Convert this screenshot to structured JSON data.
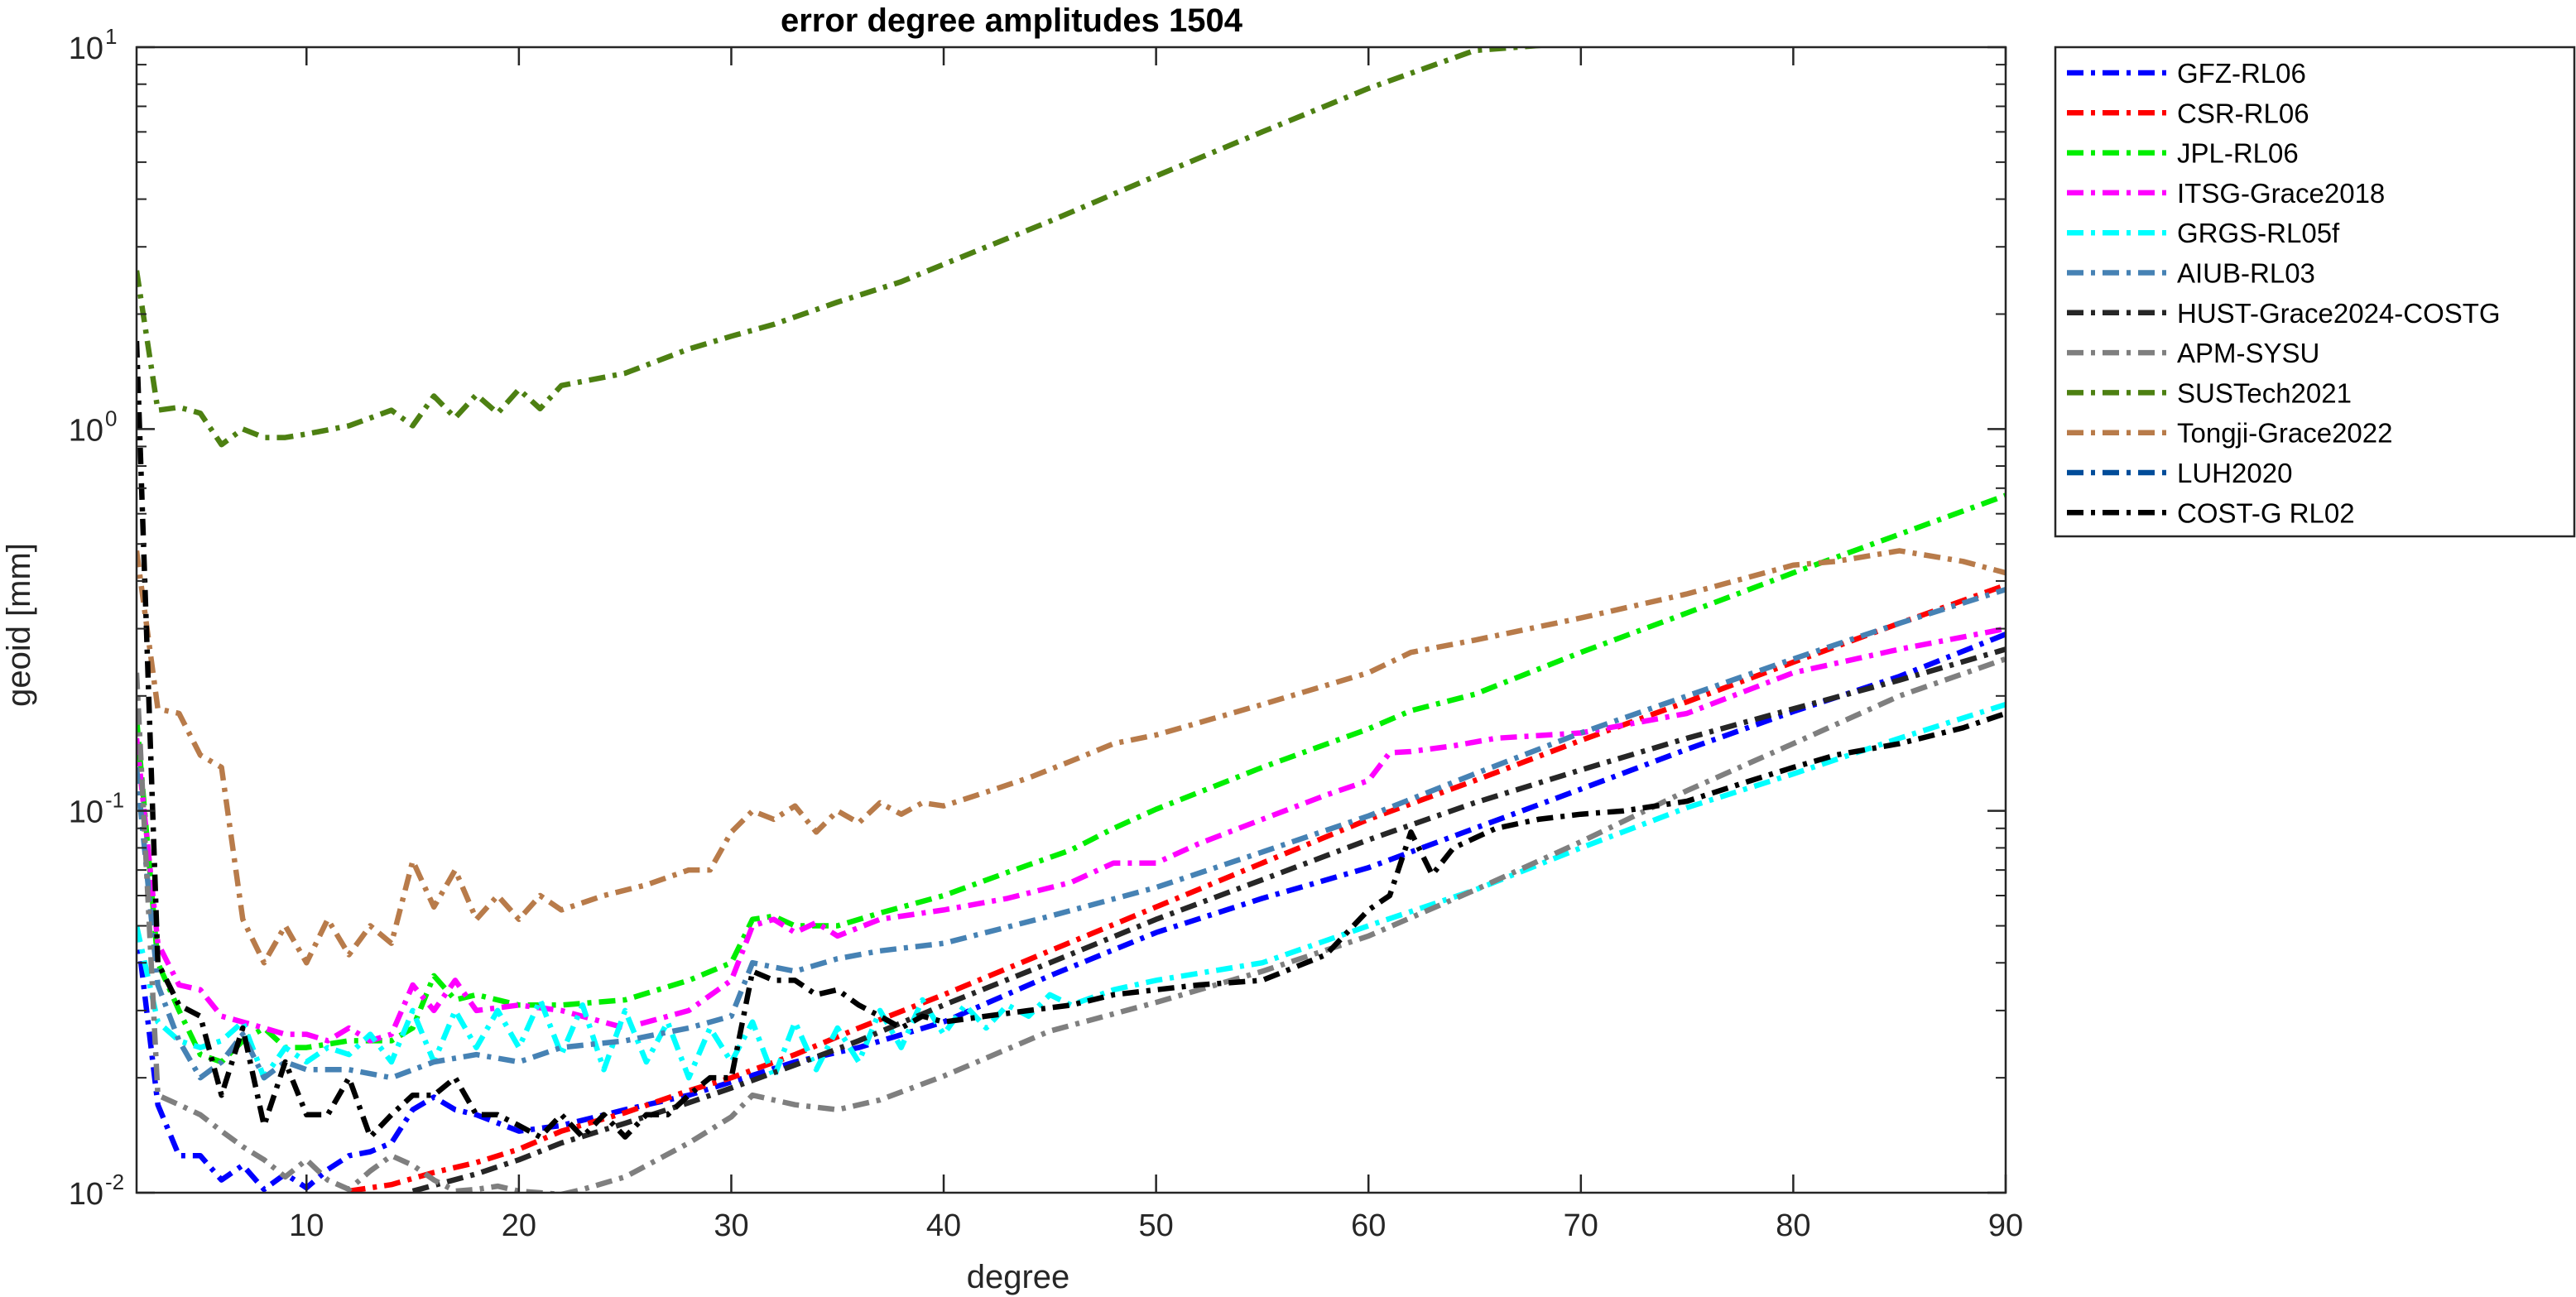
{
  "chart_data": {
    "type": "line",
    "title": "error degree amplitudes 1504",
    "xlabel": "degree",
    "ylabel": "geoid [mm]",
    "xlim": [
      2,
      90
    ],
    "ylim": [
      0.01,
      10
    ],
    "yscale": "log",
    "xticks": [
      10,
      20,
      30,
      40,
      50,
      60,
      70,
      80,
      90
    ],
    "yticks": [
      {
        "value": 0.01,
        "base": "10",
        "exp": "-2"
      },
      {
        "value": 0.1,
        "base": "10",
        "exp": "-1"
      },
      {
        "value": 1,
        "base": "10",
        "exp": "0"
      },
      {
        "value": 10,
        "base": "10",
        "exp": "1"
      }
    ],
    "grid": false,
    "legend_position": "outside-right",
    "series": [
      {
        "name": "GFZ-RL06",
        "color": "#0000ff",
        "x": [
          2,
          3,
          4,
          5,
          6,
          7,
          8,
          9,
          10,
          11,
          12,
          13,
          14,
          15,
          16,
          17,
          18,
          20,
          22,
          25,
          28,
          30,
          33,
          36,
          40,
          45,
          50,
          55,
          60,
          65,
          70,
          75,
          80,
          85,
          90
        ],
        "y": [
          0.05,
          0.017,
          0.0125,
          0.0125,
          0.0108,
          0.0118,
          0.0102,
          0.0112,
          0.0103,
          0.0115,
          0.0125,
          0.0128,
          0.0135,
          0.0165,
          0.0178,
          0.0165,
          0.016,
          0.0145,
          0.015,
          0.0165,
          0.018,
          0.0195,
          0.022,
          0.024,
          0.028,
          0.037,
          0.048,
          0.059,
          0.071,
          0.09,
          0.114,
          0.145,
          0.182,
          0.225,
          0.29
        ]
      },
      {
        "name": "CSR-RL06",
        "color": "#ff0000",
        "x": [
          12,
          14,
          16,
          18,
          20,
          22,
          25,
          28,
          30,
          33,
          36,
          40,
          45,
          50,
          55,
          60,
          65,
          70,
          75,
          80,
          85,
          90
        ],
        "y": [
          0.0101,
          0.0105,
          0.0113,
          0.012,
          0.013,
          0.0145,
          0.0162,
          0.0185,
          0.02,
          0.023,
          0.027,
          0.033,
          0.043,
          0.056,
          0.073,
          0.095,
          0.12,
          0.153,
          0.193,
          0.245,
          0.31,
          0.39
        ]
      },
      {
        "name": "JPL-RL06",
        "color": "#00ee00",
        "x": [
          2,
          3,
          4,
          5,
          6,
          7,
          8,
          9,
          10,
          12,
          14,
          15,
          16,
          17,
          18,
          20,
          22,
          25,
          28,
          30,
          31,
          32,
          33,
          35,
          37,
          40,
          43,
          46,
          48,
          50,
          55,
          60,
          62,
          65,
          70,
          75,
          80,
          85,
          90
        ],
        "y": [
          0.175,
          0.04,
          0.03,
          0.023,
          0.022,
          0.025,
          0.027,
          0.024,
          0.024,
          0.025,
          0.025,
          0.027,
          0.037,
          0.032,
          0.033,
          0.031,
          0.031,
          0.032,
          0.036,
          0.04,
          0.052,
          0.053,
          0.05,
          0.05,
          0.054,
          0.06,
          0.069,
          0.079,
          0.09,
          0.101,
          0.13,
          0.164,
          0.183,
          0.202,
          0.26,
          0.33,
          0.42,
          0.53,
          0.67
        ]
      },
      {
        "name": "ITSG-Grace2018",
        "color": "#ff00ff",
        "x": [
          2,
          3,
          4,
          5,
          6,
          7,
          8,
          9,
          10,
          11,
          12,
          13,
          14,
          15,
          16,
          17,
          18,
          20,
          22,
          25,
          28,
          30,
          31,
          32,
          33,
          34,
          35,
          37,
          40,
          43,
          46,
          48,
          50,
          52,
          55,
          58,
          60,
          61,
          62,
          64,
          66,
          70,
          75,
          80,
          85,
          90
        ],
        "y": [
          0.155,
          0.045,
          0.035,
          0.034,
          0.029,
          0.028,
          0.027,
          0.026,
          0.026,
          0.025,
          0.027,
          0.025,
          0.026,
          0.035,
          0.03,
          0.036,
          0.03,
          0.031,
          0.03,
          0.027,
          0.03,
          0.036,
          0.05,
          0.052,
          0.048,
          0.051,
          0.047,
          0.052,
          0.055,
          0.059,
          0.065,
          0.073,
          0.073,
          0.082,
          0.095,
          0.11,
          0.12,
          0.142,
          0.143,
          0.148,
          0.155,
          0.16,
          0.18,
          0.23,
          0.265,
          0.3
        ]
      },
      {
        "name": "GRGS-RL05f",
        "color": "#00ffff",
        "x": [
          2,
          3,
          4,
          5,
          6,
          7,
          8,
          9,
          10,
          11,
          12,
          13,
          14,
          15,
          16,
          17,
          18,
          19,
          20,
          21,
          22,
          23,
          24,
          25,
          26,
          27,
          28,
          29,
          30,
          31,
          32,
          33,
          34,
          35,
          36,
          37,
          38,
          39,
          40,
          41,
          42,
          43,
          44,
          45,
          46,
          48,
          50,
          55,
          60,
          65,
          70,
          75,
          80,
          85,
          90
        ],
        "y": [
          0.05,
          0.028,
          0.025,
          0.024,
          0.025,
          0.028,
          0.02,
          0.024,
          0.022,
          0.024,
          0.023,
          0.026,
          0.022,
          0.03,
          0.022,
          0.03,
          0.024,
          0.03,
          0.024,
          0.032,
          0.023,
          0.031,
          0.021,
          0.03,
          0.022,
          0.028,
          0.02,
          0.027,
          0.022,
          0.028,
          0.02,
          0.028,
          0.021,
          0.027,
          0.022,
          0.03,
          0.024,
          0.032,
          0.026,
          0.031,
          0.027,
          0.031,
          0.029,
          0.033,
          0.031,
          0.034,
          0.036,
          0.04,
          0.05,
          0.062,
          0.08,
          0.102,
          0.125,
          0.155,
          0.19
        ]
      },
      {
        "name": "AIUB-RL03",
        "color": "#4682b4",
        "x": [
          2,
          3,
          4,
          5,
          6,
          7,
          8,
          9,
          10,
          12,
          14,
          16,
          18,
          20,
          22,
          25,
          28,
          30,
          31,
          33,
          35,
          37,
          40,
          45,
          50,
          55,
          60,
          65,
          70,
          75,
          80,
          85,
          90
        ],
        "y": [
          0.13,
          0.035,
          0.025,
          0.02,
          0.022,
          0.026,
          0.02,
          0.022,
          0.021,
          0.021,
          0.02,
          0.022,
          0.023,
          0.022,
          0.024,
          0.025,
          0.027,
          0.029,
          0.04,
          0.038,
          0.041,
          0.043,
          0.045,
          0.053,
          0.063,
          0.078,
          0.097,
          0.125,
          0.16,
          0.2,
          0.25,
          0.31,
          0.38
        ]
      },
      {
        "name": "HUST-Grace2024-COSTG",
        "color": "#262626",
        "x": [
          15,
          18,
          20,
          22,
          25,
          28,
          30,
          33,
          36,
          40,
          45,
          50,
          55,
          60,
          65,
          70,
          75,
          80,
          85,
          90
        ],
        "y": [
          0.0101,
          0.0112,
          0.0122,
          0.0135,
          0.0152,
          0.0172,
          0.0188,
          0.0216,
          0.025,
          0.031,
          0.04,
          0.052,
          0.066,
          0.084,
          0.105,
          0.128,
          0.155,
          0.185,
          0.22,
          0.265
        ]
      },
      {
        "name": "APM-SYSU",
        "color": "#7f7f7f",
        "x": [
          2,
          3,
          4,
          5,
          6,
          7,
          8,
          9,
          10,
          11,
          12,
          13,
          14,
          15,
          16,
          17,
          18,
          19,
          20,
          22,
          23,
          25,
          28,
          30,
          31,
          33,
          35,
          37,
          40,
          45,
          50,
          55,
          60,
          65,
          70,
          75,
          80,
          85,
          90
        ],
        "y": [
          0.23,
          0.018,
          0.017,
          0.016,
          0.0145,
          0.0132,
          0.0122,
          0.011,
          0.0122,
          0.0108,
          0.0102,
          0.0114,
          0.0125,
          0.0118,
          0.0108,
          0.0101,
          0.0102,
          0.0104,
          0.0101,
          0.0099,
          0.0102,
          0.011,
          0.0135,
          0.0158,
          0.018,
          0.017,
          0.0165,
          0.0175,
          0.0202,
          0.0265,
          0.0315,
          0.038,
          0.047,
          0.062,
          0.083,
          0.113,
          0.15,
          0.2,
          0.25
        ]
      },
      {
        "name": "SUSTech2021",
        "color": "#4d8012",
        "x": [
          2,
          3,
          4,
          5,
          6,
          7,
          8,
          9,
          10,
          12,
          14,
          15,
          16,
          17,
          18,
          19,
          20,
          21,
          22,
          25,
          28,
          30,
          32,
          35,
          38,
          40,
          45,
          50,
          55,
          60,
          65,
          70
        ],
        "y": [
          2.6,
          1.12,
          1.14,
          1.1,
          0.91,
          1.0,
          0.95,
          0.95,
          0.97,
          1.02,
          1.12,
          1.02,
          1.22,
          1.07,
          1.23,
          1.1,
          1.27,
          1.13,
          1.3,
          1.4,
          1.62,
          1.75,
          1.88,
          2.15,
          2.43,
          2.7,
          3.5,
          4.6,
          6.0,
          7.8,
          9.8,
          10.3
        ]
      },
      {
        "name": "Tongji-Grace2022",
        "color": "#b87b4a",
        "x": [
          2,
          3,
          4,
          5,
          6,
          7,
          8,
          9,
          10,
          11,
          12,
          13,
          14,
          15,
          16,
          17,
          18,
          19,
          20,
          21,
          22,
          24,
          26,
          28,
          29,
          30,
          31,
          32,
          33,
          34,
          35,
          36,
          37,
          38,
          39,
          40,
          42,
          44,
          46,
          48,
          50,
          55,
          60,
          62,
          65,
          70,
          75,
          80,
          82,
          85,
          88,
          90
        ],
        "y": [
          0.48,
          0.185,
          0.18,
          0.14,
          0.13,
          0.052,
          0.04,
          0.05,
          0.04,
          0.052,
          0.042,
          0.05,
          0.045,
          0.074,
          0.056,
          0.07,
          0.052,
          0.06,
          0.052,
          0.06,
          0.055,
          0.06,
          0.064,
          0.07,
          0.07,
          0.088,
          0.1,
          0.095,
          0.103,
          0.088,
          0.1,
          0.093,
          0.105,
          0.098,
          0.105,
          0.103,
          0.112,
          0.122,
          0.135,
          0.15,
          0.158,
          0.19,
          0.23,
          0.26,
          0.28,
          0.32,
          0.37,
          0.44,
          0.45,
          0.48,
          0.45,
          0.42
        ]
      },
      {
        "name": "LUH2020",
        "color": "#004c99",
        "x": [],
        "y": []
      },
      {
        "name": "COST-G RL02",
        "color": "#000000",
        "x": [
          2,
          3,
          4,
          5,
          6,
          7,
          8,
          9,
          10,
          11,
          12,
          13,
          14,
          15,
          16,
          17,
          18,
          19,
          20,
          21,
          22,
          23,
          24,
          25,
          26,
          27,
          28,
          29,
          30,
          31,
          32,
          33,
          34,
          35,
          36,
          37,
          38,
          39,
          40,
          42,
          44,
          46,
          48,
          50,
          52,
          55,
          58,
          60,
          61,
          62,
          63,
          64,
          66,
          68,
          70,
          72,
          75,
          78,
          80,
          82,
          85,
          88,
          90
        ],
        "y": [
          1.7,
          0.04,
          0.031,
          0.029,
          0.018,
          0.027,
          0.015,
          0.022,
          0.016,
          0.016,
          0.02,
          0.014,
          0.016,
          0.018,
          0.018,
          0.02,
          0.016,
          0.016,
          0.015,
          0.014,
          0.016,
          0.014,
          0.016,
          0.014,
          0.016,
          0.016,
          0.018,
          0.02,
          0.02,
          0.038,
          0.036,
          0.036,
          0.033,
          0.034,
          0.031,
          0.029,
          0.027,
          0.029,
          0.028,
          0.029,
          0.03,
          0.031,
          0.033,
          0.034,
          0.035,
          0.036,
          0.042,
          0.055,
          0.06,
          0.088,
          0.068,
          0.08,
          0.09,
          0.095,
          0.098,
          0.1,
          0.106,
          0.12,
          0.13,
          0.14,
          0.15,
          0.165,
          0.18
        ]
      }
    ]
  }
}
